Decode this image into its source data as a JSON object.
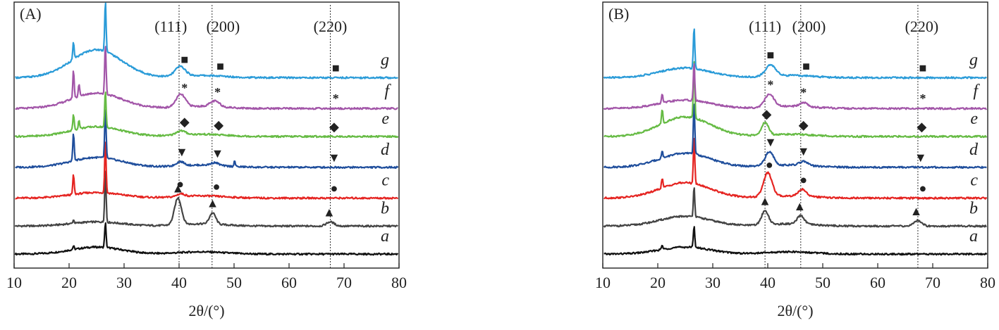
{
  "chart_data": [
    {
      "type": "line",
      "panel_label": "(A)",
      "xlabel": "2θ/(°)",
      "xlim": [
        10,
        80
      ],
      "x_ticks": [
        10,
        20,
        30,
        40,
        50,
        60,
        70,
        80
      ],
      "reference_lines_x": [
        40,
        46,
        67.5
      ],
      "planes": [
        {
          "label": "(111)",
          "x": 38.5
        },
        {
          "label": "(200)",
          "x": 48
        },
        {
          "label": "(220)",
          "x": 67.5
        }
      ],
      "series": [
        {
          "name": "a",
          "color": "#111111",
          "baseline": 0.2,
          "hump": 0.25,
          "sharp": [
            [
              20.8,
              0.12
            ],
            [
              26.6,
              0.9
            ]
          ],
          "broad": []
        },
        {
          "name": "b",
          "color": "#444444",
          "baseline": 1.2,
          "hump": 0.15,
          "sharp": [
            [
              20.8,
              0.12
            ],
            [
              26.6,
              1.9
            ]
          ],
          "broad": [
            [
              39.8,
              0.95,
              0.9
            ],
            [
              46.1,
              0.4,
              0.8
            ],
            [
              67.5,
              0.15,
              1.0
            ]
          ]
        },
        {
          "name": "c",
          "color": "#e52421",
          "baseline": 2.2,
          "hump": 0.2,
          "sharp": [
            [
              20.8,
              0.7
            ],
            [
              26.6,
              1.9
            ]
          ],
          "broad": [
            [
              40.3,
              0.1,
              1.0
            ]
          ]
        },
        {
          "name": "d",
          "color": "#1f4e9c",
          "baseline": 3.3,
          "hump": 0.35,
          "sharp": [
            [
              20.8,
              1.0
            ],
            [
              26.6,
              1.8
            ],
            [
              50.1,
              0.2
            ]
          ],
          "broad": [
            [
              40.2,
              0.15,
              1.0
            ],
            [
              46.5,
              0.1,
              1.0
            ]
          ]
        },
        {
          "name": "e",
          "color": "#66bb44",
          "baseline": 4.4,
          "hump": 0.35,
          "sharp": [
            [
              20.8,
              0.55
            ],
            [
              21.8,
              0.3
            ],
            [
              26.6,
              1.3
            ]
          ],
          "broad": [
            [
              40.3,
              0.15,
              1.2
            ]
          ]
        },
        {
          "name": "f",
          "color": "#a255a8",
          "baseline": 5.4,
          "hump": 0.55,
          "sharp": [
            [
              20.8,
              1.0
            ],
            [
              21.8,
              0.45
            ],
            [
              26.6,
              1.8
            ]
          ],
          "broad": [
            [
              40.3,
              0.45,
              1.2
            ],
            [
              46.5,
              0.2,
              1.2
            ]
          ]
        },
        {
          "name": "g",
          "color": "#2a9bd8",
          "baseline": 6.5,
          "hump": 1.0,
          "sharp": [
            [
              20.8,
              0.6
            ],
            [
              26.6,
              1.8
            ]
          ],
          "broad": [
            [
              40.2,
              0.35,
              1.3
            ]
          ]
        }
      ],
      "markers": [
        {
          "series": "b",
          "symbol": "▲",
          "x": [
            39.8,
            46.1,
            67.3
          ]
        },
        {
          "series": "c",
          "symbol": "●",
          "x": [
            40.2,
            46.8,
            68.2
          ]
        },
        {
          "series": "d",
          "symbol": "▼",
          "x": [
            40.5,
            47.0,
            68.2
          ]
        },
        {
          "series": "e",
          "symbol": "◆",
          "x": [
            41.0,
            47.2,
            68.2
          ]
        },
        {
          "series": "f",
          "symbol": "*",
          "x": [
            41.0,
            47.0,
            68.5
          ]
        },
        {
          "series": "g",
          "symbol": "■",
          "x": [
            41.0,
            47.5,
            68.5
          ]
        }
      ]
    },
    {
      "type": "line",
      "panel_label": "(B)",
      "xlabel": "2θ/(°)",
      "xlim": [
        10,
        80
      ],
      "x_ticks": [
        10,
        20,
        30,
        40,
        50,
        60,
        70,
        80
      ],
      "reference_lines_x": [
        39.5,
        46,
        67.3
      ],
      "planes": [
        {
          "label": "(111)",
          "x": 39.5
        },
        {
          "label": "(200)",
          "x": 47.5
        },
        {
          "label": "(220)",
          "x": 68
        }
      ],
      "series": [
        {
          "name": "a",
          "color": "#111111",
          "baseline": 0.2,
          "hump": 0.25,
          "sharp": [
            [
              20.8,
              0.15
            ],
            [
              26.6,
              0.8
            ]
          ],
          "broad": []
        },
        {
          "name": "b",
          "color": "#444444",
          "baseline": 1.2,
          "hump": 0.35,
          "sharp": [
            [
              26.6,
              1.1
            ]
          ],
          "broad": [
            [
              39.5,
              0.5,
              0.9
            ],
            [
              46.0,
              0.3,
              0.9
            ],
            [
              67.3,
              0.2,
              1.0
            ]
          ]
        },
        {
          "name": "c",
          "color": "#e52421",
          "baseline": 2.2,
          "hump": 0.55,
          "sharp": [
            [
              20.8,
              0.35
            ],
            [
              26.6,
              1.7
            ]
          ],
          "broad": [
            [
              40.0,
              0.85,
              1.1
            ],
            [
              46.3,
              0.25,
              1.0
            ]
          ]
        },
        {
          "name": "d",
          "color": "#1f4e9c",
          "baseline": 3.3,
          "hump": 0.5,
          "sharp": [
            [
              20.8,
              0.25
            ],
            [
              26.6,
              1.9
            ]
          ],
          "broad": [
            [
              40.3,
              0.5,
              1.1
            ],
            [
              46.5,
              0.15,
              1.0
            ]
          ]
        },
        {
          "name": "e",
          "color": "#66bb44",
          "baseline": 4.4,
          "hump": 0.7,
          "sharp": [
            [
              20.8,
              0.5
            ],
            [
              26.6,
              2.1
            ]
          ],
          "broad": [
            [
              39.5,
              0.45,
              0.9
            ]
          ]
        },
        {
          "name": "f",
          "color": "#a255a8",
          "baseline": 5.4,
          "hump": 0.3,
          "sharp": [
            [
              20.8,
              0.3
            ],
            [
              26.6,
              1.4
            ]
          ],
          "broad": [
            [
              40.3,
              0.45,
              1.2
            ],
            [
              46.5,
              0.15,
              1.0
            ]
          ]
        },
        {
          "name": "g",
          "color": "#2a9bd8",
          "baseline": 6.5,
          "hump": 0.35,
          "sharp": [
            [
              26.6,
              1.5
            ]
          ],
          "broad": [
            [
              40.5,
              0.4,
              1.3
            ]
          ]
        }
      ],
      "markers": [
        {
          "series": "b",
          "symbol": "▲",
          "x": [
            39.5,
            45.8,
            67.0
          ]
        },
        {
          "series": "c",
          "symbol": "●",
          "x": [
            40.3,
            46.5,
            68.2
          ]
        },
        {
          "series": "d",
          "symbol": "▼",
          "x": [
            40.5,
            46.5,
            67.8
          ]
        },
        {
          "series": "e",
          "symbol": "◆",
          "x": [
            39.8,
            46.5,
            68.0
          ]
        },
        {
          "series": "f",
          "symbol": "*",
          "x": [
            40.5,
            46.5,
            68.2
          ]
        },
        {
          "series": "g",
          "symbol": "■",
          "x": [
            40.5,
            47.0,
            68.2
          ]
        }
      ]
    }
  ]
}
